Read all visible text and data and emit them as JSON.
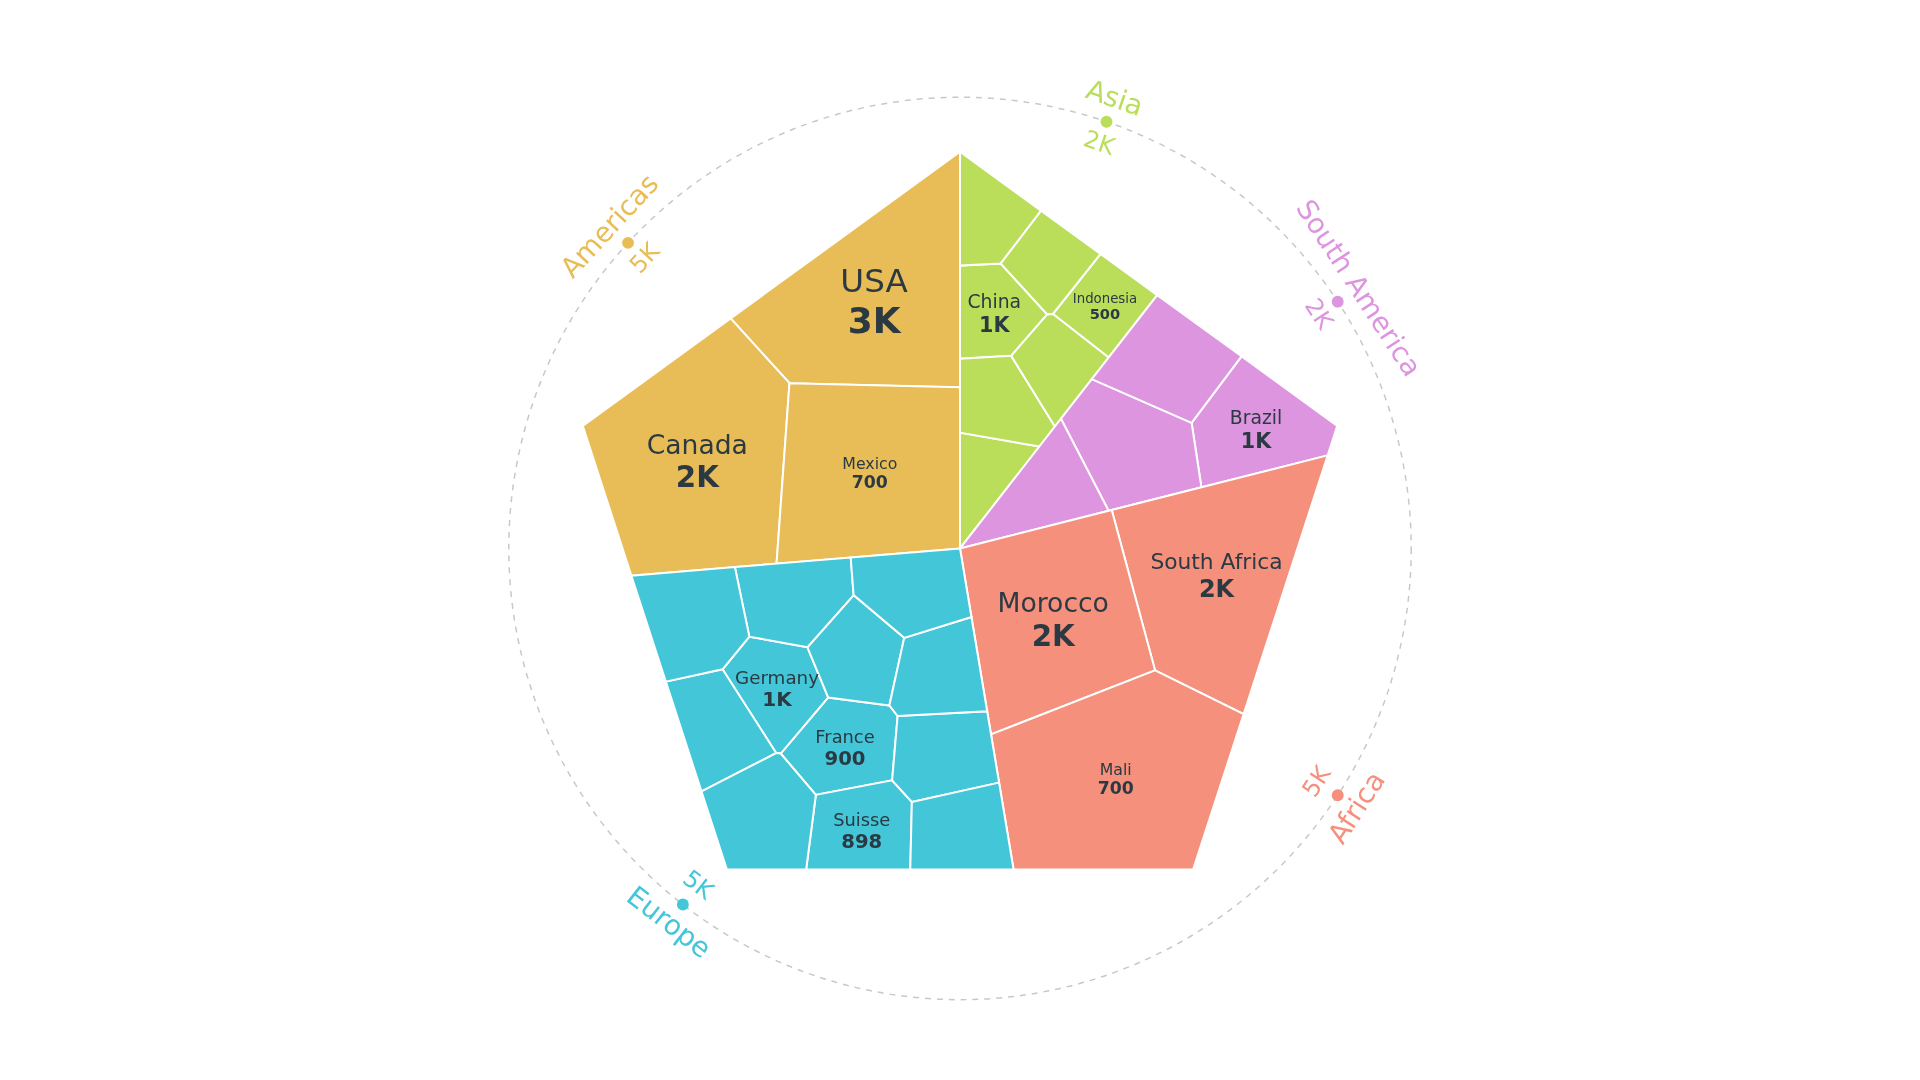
{
  "chart_data": {
    "type": "other",
    "categories": [
      "USA",
      "Canada",
      "Mexico",
      "Indonesia",
      "China",
      null,
      null,
      null,
      null,
      null,
      "Brazil",
      null,
      null,
      null,
      "South Africa",
      "Morocco",
      "Mali",
      "France",
      "Germany",
      "Suisse",
      null,
      null,
      null,
      null,
      null,
      null,
      null,
      null,
      null
    ],
    "series": [
      {
        "name": "Americas",
        "color": "#e8bd58",
        "values": [
          3000,
          2000,
          700,
          null,
          null,
          null,
          null,
          null,
          null,
          null,
          null,
          null,
          null,
          null,
          null,
          null,
          null,
          null,
          null,
          null,
          null,
          null,
          null,
          null,
          null,
          null,
          null,
          null,
          null
        ],
        "value_labels": [
          "3K",
          "2K",
          "700",
          null,
          null,
          null,
          null,
          null,
          null,
          null,
          null,
          null,
          null,
          null,
          null,
          null,
          null,
          null,
          null,
          null,
          null,
          null,
          null,
          null,
          null,
          null,
          null,
          null,
          null
        ]
      },
      {
        "name": "Asia",
        "color": "#bade5a",
        "values": [
          null,
          null,
          null,
          500,
          1000,
          null,
          null,
          null,
          null,
          null,
          null,
          null,
          null,
          null,
          null,
          null,
          null,
          null,
          null,
          null,
          null,
          null,
          null,
          null,
          null,
          null,
          null,
          null,
          null
        ],
        "value_labels": [
          null,
          null,
          null,
          "500",
          "1K",
          null,
          null,
          null,
          null,
          null,
          null,
          null,
          null,
          null,
          null,
          null,
          null,
          null,
          null,
          null,
          null,
          null,
          null,
          null,
          null,
          null,
          null,
          null,
          null
        ]
      },
      {
        "name": "South America",
        "color": "#dd95e0",
        "values": [
          null,
          null,
          null,
          null,
          null,
          null,
          null,
          null,
          null,
          null,
          1000,
          null,
          null,
          null,
          null,
          null,
          null,
          null,
          null,
          null,
          null,
          null,
          null,
          null,
          null,
          null,
          null,
          null,
          null
        ],
        "value_labels": [
          null,
          null,
          null,
          null,
          null,
          null,
          null,
          null,
          null,
          null,
          "1K",
          null,
          null,
          null,
          null,
          null,
          null,
          null,
          null,
          null,
          null,
          null,
          null,
          null,
          null,
          null,
          null,
          null,
          null
        ]
      },
      {
        "name": "Africa",
        "color": "#f4907c",
        "values": [
          null,
          null,
          null,
          null,
          null,
          null,
          null,
          null,
          null,
          null,
          null,
          null,
          null,
          null,
          2000,
          2000,
          700,
          null,
          null,
          null,
          null,
          null,
          null,
          null,
          null,
          null,
          null,
          null,
          null
        ],
        "value_labels": [
          null,
          null,
          null,
          null,
          null,
          null,
          null,
          null,
          null,
          null,
          null,
          null,
          null,
          null,
          "2K",
          "2K",
          "700",
          null,
          null,
          null,
          null,
          null,
          null,
          null,
          null,
          null,
          null,
          null,
          null
        ]
      },
      {
        "name": "Europe",
        "color": "#42c6d8",
        "values": [
          null,
          null,
          null,
          null,
          null,
          null,
          null,
          null,
          null,
          null,
          null,
          null,
          null,
          null,
          null,
          null,
          null,
          900,
          1000,
          898,
          null,
          null,
          null,
          null,
          null,
          null,
          null,
          null,
          null
        ],
        "value_labels": [
          null,
          null,
          null,
          null,
          null,
          null,
          null,
          null,
          null,
          null,
          null,
          null,
          null,
          null,
          null,
          null,
          null,
          "900",
          "1K",
          "898",
          null,
          null,
          null,
          null,
          null,
          null,
          null,
          null,
          null
        ]
      }
    ],
    "totals": [
      "5K",
      "2K",
      "2K",
      "5K",
      "5K"
    ]
  }
}
